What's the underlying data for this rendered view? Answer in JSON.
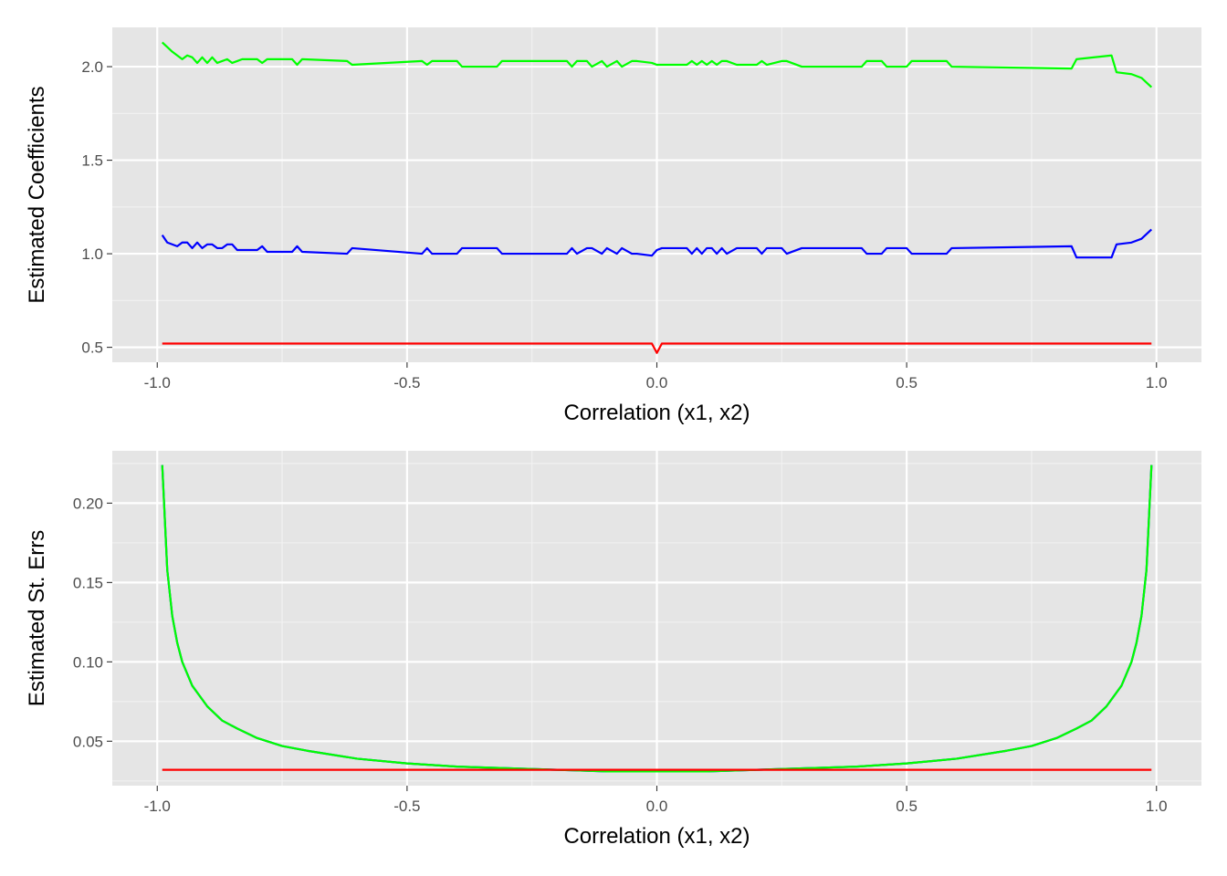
{
  "chart_data": [
    {
      "type": "line",
      "title": "",
      "xlabel": "Correlation (x1, x2)",
      "ylabel": "Estimated Coefficients",
      "xlim": [
        -1.09,
        1.09
      ],
      "ylim": [
        0.42,
        2.21
      ],
      "x_ticks": [
        -1.0,
        -0.5,
        0.0,
        0.5,
        1.0
      ],
      "x_tick_labels": [
        "-1.0",
        "-0.5",
        "0.0",
        "0.5",
        "1.0"
      ],
      "y_ticks": [
        0.5,
        1.0,
        1.5,
        2.0
      ],
      "y_tick_labels": [
        "0.5",
        "1.0",
        "1.5",
        "2.0"
      ],
      "grid": true,
      "legend": "none",
      "series": [
        {
          "color": "#00FF00",
          "x": [
            -0.99,
            -0.97,
            -0.95,
            -0.94,
            -0.93,
            -0.92,
            -0.91,
            -0.9,
            -0.89,
            -0.88,
            -0.86,
            -0.85,
            -0.84,
            -0.83,
            -0.8,
            -0.79,
            -0.78,
            -0.73,
            -0.72,
            -0.71,
            -0.62,
            -0.61,
            -0.47,
            -0.46,
            -0.45,
            -0.4,
            -0.39,
            -0.32,
            -0.31,
            -0.18,
            -0.17,
            -0.16,
            -0.14,
            -0.13,
            -0.11,
            -0.1,
            -0.08,
            -0.07,
            -0.05,
            -0.04,
            -0.01,
            0.0,
            0.01,
            0.06,
            0.07,
            0.08,
            0.09,
            0.1,
            0.11,
            0.12,
            0.13,
            0.14,
            0.16,
            0.17,
            0.2,
            0.21,
            0.22,
            0.25,
            0.26,
            0.29,
            0.41,
            0.42,
            0.45,
            0.46,
            0.5,
            0.51,
            0.58,
            0.59,
            0.83,
            0.84,
            0.91,
            0.92,
            0.95,
            0.97,
            0.99
          ],
          "y": [
            2.13,
            2.08,
            2.04,
            2.06,
            2.05,
            2.02,
            2.05,
            2.02,
            2.05,
            2.02,
            2.04,
            2.02,
            2.03,
            2.04,
            2.04,
            2.02,
            2.04,
            2.04,
            2.01,
            2.04,
            2.03,
            2.01,
            2.03,
            2.01,
            2.03,
            2.03,
            2.0,
            2.0,
            2.03,
            2.03,
            2.0,
            2.03,
            2.03,
            2.0,
            2.03,
            2.0,
            2.03,
            2.0,
            2.03,
            2.03,
            2.02,
            2.01,
            2.01,
            2.01,
            2.03,
            2.01,
            2.03,
            2.01,
            2.03,
            2.01,
            2.03,
            2.03,
            2.01,
            2.01,
            2.01,
            2.03,
            2.01,
            2.03,
            2.03,
            2.0,
            2.0,
            2.03,
            2.03,
            2.0,
            2.0,
            2.03,
            2.03,
            2.0,
            1.99,
            2.04,
            2.06,
            1.97,
            1.96,
            1.94,
            1.89
          ]
        },
        {
          "color": "#0000FF",
          "x": [
            -0.99,
            -0.98,
            -0.96,
            -0.95,
            -0.94,
            -0.93,
            -0.92,
            -0.91,
            -0.9,
            -0.89,
            -0.88,
            -0.87,
            -0.86,
            -0.85,
            -0.84,
            -0.83,
            -0.8,
            -0.79,
            -0.78,
            -0.73,
            -0.72,
            -0.71,
            -0.62,
            -0.61,
            -0.47,
            -0.46,
            -0.45,
            -0.4,
            -0.39,
            -0.32,
            -0.31,
            -0.18,
            -0.17,
            -0.16,
            -0.14,
            -0.13,
            -0.11,
            -0.1,
            -0.08,
            -0.07,
            -0.05,
            -0.04,
            -0.01,
            0.0,
            0.01,
            0.06,
            0.07,
            0.08,
            0.09,
            0.1,
            0.11,
            0.12,
            0.13,
            0.14,
            0.16,
            0.17,
            0.2,
            0.21,
            0.22,
            0.25,
            0.26,
            0.29,
            0.41,
            0.42,
            0.45,
            0.46,
            0.5,
            0.51,
            0.58,
            0.59,
            0.83,
            0.84,
            0.91,
            0.92,
            0.95,
            0.97,
            0.99
          ],
          "y": [
            1.1,
            1.06,
            1.04,
            1.06,
            1.06,
            1.03,
            1.06,
            1.03,
            1.05,
            1.05,
            1.03,
            1.03,
            1.05,
            1.05,
            1.02,
            1.02,
            1.02,
            1.04,
            1.01,
            1.01,
            1.04,
            1.01,
            1.0,
            1.03,
            1.0,
            1.03,
            1.0,
            1.0,
            1.03,
            1.03,
            1.0,
            1.0,
            1.03,
            1.0,
            1.03,
            1.03,
            1.0,
            1.03,
            1.0,
            1.03,
            1.0,
            1.0,
            0.99,
            1.02,
            1.03,
            1.03,
            1.0,
            1.03,
            1.0,
            1.03,
            1.03,
            1.0,
            1.03,
            1.0,
            1.03,
            1.03,
            1.03,
            1.0,
            1.03,
            1.03,
            1.0,
            1.03,
            1.03,
            1.0,
            1.0,
            1.03,
            1.03,
            1.0,
            1.0,
            1.03,
            1.04,
            0.98,
            0.98,
            1.05,
            1.06,
            1.08,
            1.13
          ]
        },
        {
          "color": "#FF0000",
          "x": [
            -0.99,
            -0.01,
            0.0,
            0.01,
            0.99
          ],
          "y": [
            0.52,
            0.52,
            0.47,
            0.52,
            0.52
          ]
        }
      ]
    },
    {
      "type": "line",
      "title": "",
      "xlabel": "Correlation (x1, x2)",
      "ylabel": "Estimated St. Errs",
      "xlim": [
        -1.09,
        1.09
      ],
      "ylim": [
        0.022,
        0.233
      ],
      "x_ticks": [
        -1.0,
        -0.5,
        0.0,
        0.5,
        1.0
      ],
      "x_tick_labels": [
        "-1.0",
        "-0.5",
        "0.0",
        "0.5",
        "1.0"
      ],
      "y_ticks": [
        0.05,
        0.1,
        0.15,
        0.2
      ],
      "y_tick_labels": [
        "0.05",
        "0.10",
        "0.15",
        "0.20"
      ],
      "grid": true,
      "legend": "none",
      "series": [
        {
          "color": "#0000FF",
          "x": [
            -0.99,
            -0.98,
            -0.97,
            -0.96,
            -0.95,
            -0.93,
            -0.9,
            -0.87,
            -0.84,
            -0.8,
            -0.75,
            -0.7,
            -0.6,
            -0.5,
            -0.4,
            -0.3,
            -0.2,
            -0.1,
            0.0,
            0.1,
            0.2,
            0.3,
            0.4,
            0.5,
            0.6,
            0.7,
            0.75,
            0.8,
            0.84,
            0.87,
            0.9,
            0.93,
            0.95,
            0.96,
            0.97,
            0.98,
            0.99
          ],
          "y": [
            0.224,
            0.158,
            0.129,
            0.112,
            0.1,
            0.085,
            0.072,
            0.063,
            0.058,
            0.052,
            0.047,
            0.044,
            0.039,
            0.036,
            0.034,
            0.033,
            0.032,
            0.031,
            0.031,
            0.031,
            0.032,
            0.033,
            0.034,
            0.036,
            0.039,
            0.044,
            0.047,
            0.052,
            0.058,
            0.063,
            0.072,
            0.085,
            0.1,
            0.112,
            0.129,
            0.158,
            0.224
          ]
        },
        {
          "color": "#00FF00",
          "x": [
            -0.99,
            -0.98,
            -0.97,
            -0.96,
            -0.95,
            -0.93,
            -0.9,
            -0.87,
            -0.84,
            -0.8,
            -0.75,
            -0.7,
            -0.6,
            -0.5,
            -0.4,
            -0.3,
            -0.2,
            -0.1,
            0.0,
            0.1,
            0.2,
            0.3,
            0.4,
            0.5,
            0.6,
            0.7,
            0.75,
            0.8,
            0.84,
            0.87,
            0.9,
            0.93,
            0.95,
            0.96,
            0.97,
            0.98,
            0.99
          ],
          "y": [
            0.224,
            0.158,
            0.129,
            0.112,
            0.1,
            0.085,
            0.072,
            0.063,
            0.058,
            0.052,
            0.047,
            0.044,
            0.039,
            0.036,
            0.034,
            0.033,
            0.032,
            0.031,
            0.031,
            0.031,
            0.032,
            0.033,
            0.034,
            0.036,
            0.039,
            0.044,
            0.047,
            0.052,
            0.058,
            0.063,
            0.072,
            0.085,
            0.1,
            0.112,
            0.129,
            0.158,
            0.224
          ]
        },
        {
          "color": "#FF0000",
          "x": [
            -0.99,
            0.99
          ],
          "y": [
            0.032,
            0.032
          ]
        }
      ]
    }
  ],
  "theme": {
    "panel_bg": "#E5E5E5",
    "grid_major": "#FFFFFF",
    "grid_minor": "#F2F2F2",
    "tick_text": "#4D4D4D",
    "tick_mark": "#333333",
    "title_text": "#000000"
  }
}
